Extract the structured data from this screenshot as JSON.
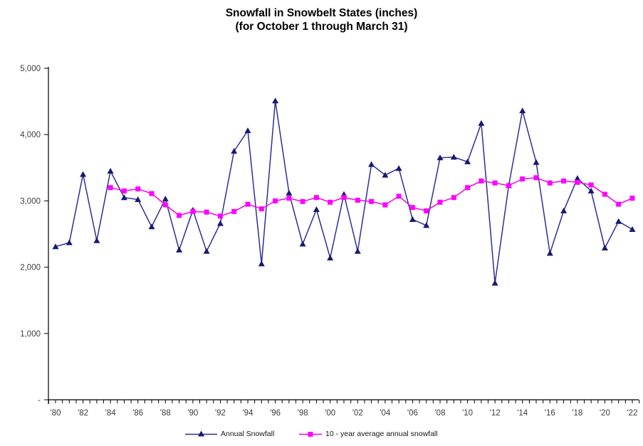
{
  "chart_data": {
    "type": "line",
    "title": "Snowfall in Snowbelt States (inches)",
    "subtitle": "(for October 1 through March 31)",
    "xlabel": "",
    "ylabel": "",
    "ylim": [
      0,
      5000
    ],
    "grid": false,
    "legend_position": "bottom",
    "y_tick_values": [
      0,
      1000,
      2000,
      3000,
      4000,
      5000
    ],
    "y_tick_labels": [
      "-",
      "1,000",
      "2,000",
      "3,000",
      "4,000",
      "5,000"
    ],
    "x_tick_labels": [
      "'80",
      "'82",
      "'84",
      "'86",
      "'88",
      "'90",
      "'92",
      "'94",
      "'96",
      "'98",
      "'00",
      "'02",
      "'04",
      "'06",
      "'08",
      "'10",
      "'12",
      "'14",
      "'16",
      "'18",
      "'20",
      "'22"
    ],
    "years": [
      1980,
      1981,
      1982,
      1983,
      1984,
      1985,
      1986,
      1987,
      1988,
      1989,
      1990,
      1991,
      1992,
      1993,
      1994,
      1995,
      1996,
      1997,
      1998,
      1999,
      2000,
      2001,
      2002,
      2003,
      2004,
      2005,
      2006,
      2007,
      2008,
      2009,
      2010,
      2011,
      2012,
      2013,
      2014,
      2015,
      2016,
      2017,
      2018,
      2019,
      2020,
      2021,
      2022
    ],
    "colors": {
      "annual_line": "#2E2E96",
      "annual_marker": "#191970",
      "average_line": "#F000F0",
      "average_marker": "#FF00FF",
      "axis": "#000000",
      "tick_text": "#3d3d3d"
    },
    "series": [
      {
        "name": "Annual Snowfall",
        "marker": "triangle",
        "values": [
          2310,
          2370,
          3400,
          2400,
          3450,
          3050,
          3020,
          2610,
          3030,
          2260,
          2860,
          2240,
          2660,
          3750,
          4060,
          2050,
          4510,
          3120,
          2350,
          2870,
          2140,
          3100,
          2240,
          3550,
          3390,
          3490,
          2720,
          2630,
          3650,
          3660,
          3590,
          4170,
          1760,
          3230,
          4360,
          3580,
          2210,
          2850,
          3340,
          3150,
          2290,
          2690,
          2570
        ]
      },
      {
        "name": "10 - year average annual snowfall",
        "marker": "square",
        "values": [
          null,
          null,
          null,
          null,
          3200,
          3150,
          3180,
          3110,
          2940,
          2780,
          2840,
          2830,
          2770,
          2840,
          2950,
          2880,
          3000,
          3040,
          2990,
          3050,
          2980,
          3050,
          3010,
          2990,
          2940,
          3070,
          2900,
          2850,
          2980,
          3050,
          3200,
          3300,
          3270,
          3230,
          3330,
          3350,
          3270,
          3300,
          3280,
          3240,
          3100,
          2950,
          3040
        ]
      }
    ]
  }
}
